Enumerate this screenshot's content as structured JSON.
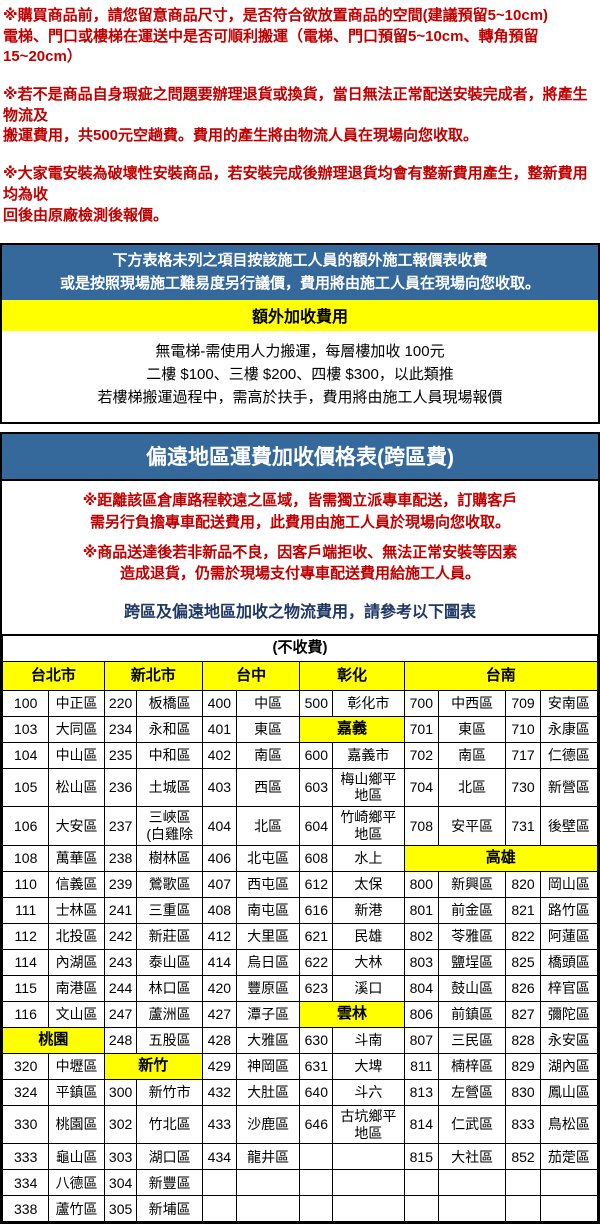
{
  "top_notes": [
    "※購買商品前，請您留意商品尺寸，是否符合欲放置商品的空間(建議預留5~10cm)\n電梯、門口或樓梯在運送中是否可順利搬運（電梯、門口預留5~10cm、轉角預留15~20cm）",
    "※若不是商品自身瑕疵之問題要辦理退貨或換貨，當日無法正常配送安裝完成者，將產生物流及\n搬運費用，共500元空趟費。費用的產生將由物流人員在現場向您收取。",
    "※大家電安裝為破壞性安裝商品，若安裝完成後辦理退貨均會有整新費用產生，整新費用均為收\n回後由原廠檢測後報價。"
  ],
  "box1": {
    "banner": "下方表格未列之項目按該施工人員的額外施工報價表收費\n或是按照現場施工難易度另行議價，費用將由施工人員在現場向您收取。",
    "title": "額外加收費用",
    "note": "無電梯-需使用人力搬運，每層樓加收 100元\n二樓 $100、三樓 $200、四樓 $300，以此類推\n若樓梯搬運過程中，需高於扶手，費用將由施工人員現場報價"
  },
  "box2": {
    "title": "偏遠地區運費加收價格表(跨區費)",
    "notes": [
      "※距離該區倉庫路程較遠之區域，皆需獨立派專車配送，訂購客戶\n需另行負擔專車配送費用，此費用由施工人員於現場向您收取。",
      "※商品送達後若非新品不良，因客戶端拒收、無法正常安裝等因素\n造成退貨，仍需於現場支付專車配送費用給施工人員。"
    ],
    "table_intro": "跨區及偏遠地區加收之物流費用，請參考以下圖表",
    "table": {
      "free_label": "(不收費)",
      "header": [
        {
          "t": "台北市",
          "s": 2
        },
        {
          "t": "新北市",
          "s": 2
        },
        {
          "t": "台中",
          "s": 2
        },
        {
          "t": "彰化",
          "s": 2
        },
        {
          "t": "台南",
          "s": 4
        }
      ],
      "rows": [
        [
          "100",
          "中正區",
          "220",
          "板橋區",
          "400",
          "中區",
          "500",
          "彰化市",
          "700",
          "中西區",
          "709",
          "安南區"
        ],
        [
          "103",
          "大同區",
          "234",
          "永和區",
          "401",
          "東區",
          {
            "t": "嘉義",
            "s": 2,
            "hl": true
          },
          "701",
          "東區",
          "710",
          "永康區"
        ],
        [
          "104",
          "中山區",
          "235",
          "中和區",
          "402",
          "南區",
          "600",
          "嘉義市",
          "702",
          "南區",
          "717",
          "仁德區"
        ],
        [
          "105",
          "松山區",
          "236",
          "土城區",
          "403",
          "西區",
          "603",
          "梅山鄉平\n地區",
          "704",
          "北區",
          "730",
          "新營區"
        ],
        [
          "106",
          "大安區",
          "237",
          "三峽區\n(白雞除",
          "404",
          "北區",
          "604",
          "竹崎鄉平\n地區",
          "708",
          "安平區",
          "731",
          "後壁區"
        ],
        [
          "108",
          "萬華區",
          "238",
          "樹林區",
          "406",
          "北屯區",
          "608",
          "水上",
          {
            "t": "高雄",
            "s": 4,
            "hl": true
          }
        ],
        [
          "110",
          "信義區",
          "239",
          "鶯歌區",
          "407",
          "西屯區",
          "612",
          "太保",
          "800",
          "新興區",
          "820",
          "岡山區"
        ],
        [
          "111",
          "士林區",
          "241",
          "三重區",
          "408",
          "南屯區",
          "616",
          "新港",
          "801",
          "前金區",
          "821",
          "路竹區"
        ],
        [
          "112",
          "北投區",
          "242",
          "新莊區",
          "412",
          "大里區",
          "621",
          "民雄",
          "802",
          "苓雅區",
          "822",
          "阿蓮區"
        ],
        [
          "114",
          "內湖區",
          "243",
          "泰山區",
          "414",
          "烏日區",
          "622",
          "大林",
          "803",
          "鹽埕區",
          "825",
          "橋頭區"
        ],
        [
          "115",
          "南港區",
          "244",
          "林口區",
          "420",
          "豐原區",
          "623",
          "溪口",
          "804",
          "鼓山區",
          "826",
          "梓官區"
        ],
        [
          "116",
          "文山區",
          "247",
          "蘆洲區",
          "427",
          "潭子區",
          {
            "t": "雲林",
            "s": 2,
            "hl": true
          },
          "806",
          "前鎮區",
          "827",
          "彌陀區"
        ],
        [
          {
            "t": "桃園",
            "s": 2,
            "hl": true
          },
          "248",
          "五股區",
          "428",
          "大雅區",
          "630",
          "斗南",
          "807",
          "三民區",
          "828",
          "永安區"
        ],
        [
          "320",
          "中壢區",
          {
            "t": "新竹",
            "s": 2,
            "hl": true
          },
          "429",
          "神岡區",
          "631",
          "大埤",
          "811",
          "楠梓區",
          "829",
          "湖內區"
        ],
        [
          "324",
          "平鎮區",
          "300",
          "新竹市",
          "432",
          "大肚區",
          "640",
          "斗六",
          "813",
          "左營區",
          "830",
          "鳳山區"
        ],
        [
          "330",
          "桃園區",
          "302",
          "竹北區",
          "433",
          "沙鹿區",
          "646",
          "古坑鄉平\n地區",
          "814",
          "仁武區",
          "833",
          "鳥松區"
        ],
        [
          "333",
          "龜山區",
          "303",
          "湖口區",
          "434",
          "龍井區",
          "",
          "",
          "815",
          "大社區",
          "852",
          "茄萣區"
        ],
        [
          "334",
          "八德區",
          "304",
          "新豐區",
          "",
          "",
          "",
          "",
          "",
          "",
          "",
          ""
        ],
        [
          "338",
          "蘆竹區",
          "305",
          "新埔區",
          "",
          "",
          "",
          "",
          "",
          "",
          "",
          ""
        ]
      ]
    }
  },
  "colors": {
    "warning_red": "#c00000",
    "banner_blue": "#35689b",
    "highlight_yellow": "#ffff00",
    "intro_navy": "#1f3864"
  }
}
